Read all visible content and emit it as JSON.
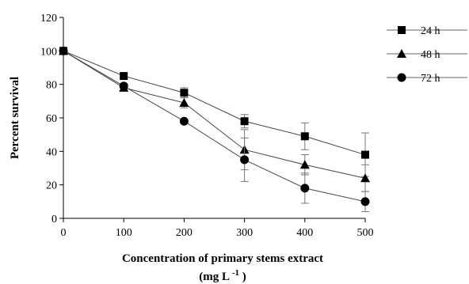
{
  "chart_data": {
    "type": "line",
    "title": "",
    "xlabel": "Concentration of primary stems extract",
    "xlabel_unit_main": "(mg L",
    "xlabel_unit_sup": "-1",
    "xlabel_unit_close": ")",
    "ylabel": "Percent survival",
    "x": [
      0,
      100,
      200,
      300,
      400,
      500
    ],
    "xticks": [
      "0",
      "100",
      "200",
      "300",
      "400",
      "500"
    ],
    "yticks": [
      "0",
      "20",
      "40",
      "60",
      "80",
      "100",
      "120"
    ],
    "xlim": [
      0,
      500
    ],
    "ylim": [
      0,
      120
    ],
    "grid": false,
    "legend_position": "top-right",
    "series": [
      {
        "name": "24 h",
        "marker": "square",
        "values": [
          100,
          85,
          75,
          58,
          49,
          38
        ],
        "errors": [
          0,
          1.5,
          3,
          4,
          8,
          13
        ]
      },
      {
        "name": "48 h",
        "marker": "triangle",
        "values": [
          100,
          78,
          69,
          41,
          32,
          24
        ],
        "errors": [
          0,
          2,
          3,
          12,
          6,
          8
        ]
      },
      {
        "name": "72 h",
        "marker": "circle",
        "values": [
          100,
          79,
          58,
          35,
          18,
          10
        ],
        "errors": [
          0,
          1.5,
          1,
          13,
          9,
          6
        ]
      }
    ]
  }
}
